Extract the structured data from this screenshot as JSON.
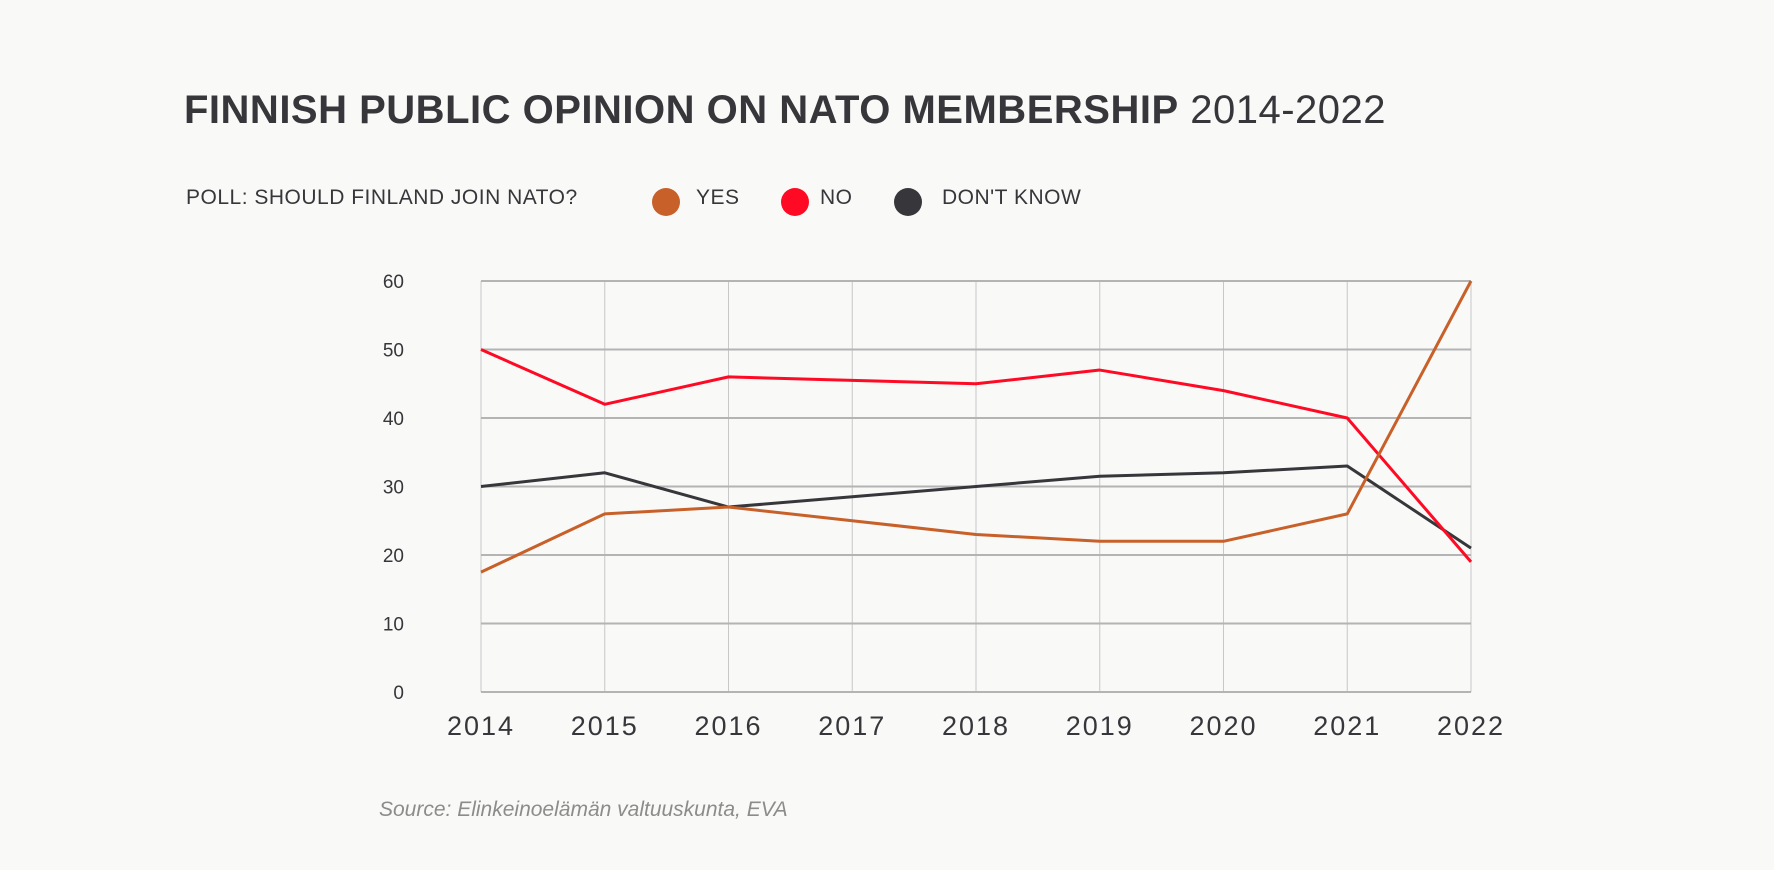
{
  "title": {
    "main": "FINNISH PUBLIC OPINION ON NATO MEMBERSHIP",
    "years": "2014-2022"
  },
  "legend": {
    "label": "POLL: SHOULD FINLAND JOIN NATO?",
    "items": [
      "YES",
      "NO",
      "DON'T KNOW"
    ]
  },
  "source": "Source: Elinkeinoelämän valtuuskunta, EVA",
  "colors": {
    "yes": "#c8602a",
    "no": "#ff0a24",
    "dont_know": "#37363b",
    "grid": "#b4b4b4",
    "background": "#f9f9f7"
  },
  "chart_data": {
    "type": "line",
    "title": "FINNISH PUBLIC OPINION ON NATO MEMBERSHIP 2014-2022",
    "x": [
      "2014",
      "2015",
      "2016",
      "2017",
      "2018",
      "2019",
      "2020",
      "2021",
      "2022"
    ],
    "y_ticks": [
      "0",
      "10",
      "20",
      "30",
      "40",
      "50",
      "60"
    ],
    "ylim": [
      0,
      60
    ],
    "grid": true,
    "legend_position": "top-left",
    "series": [
      {
        "name": "YES",
        "color": "#c8602a",
        "values": [
          17.5,
          26,
          27,
          25,
          23,
          22,
          22,
          26,
          60
        ]
      },
      {
        "name": "NO",
        "color": "#ff0a24",
        "values": [
          50,
          42,
          46,
          45.5,
          45,
          47,
          44,
          40,
          19
        ]
      },
      {
        "name": "DON'T KNOW",
        "color": "#37363b",
        "values": [
          30,
          32,
          27,
          28.5,
          30,
          31.5,
          32,
          33,
          21
        ]
      }
    ]
  }
}
